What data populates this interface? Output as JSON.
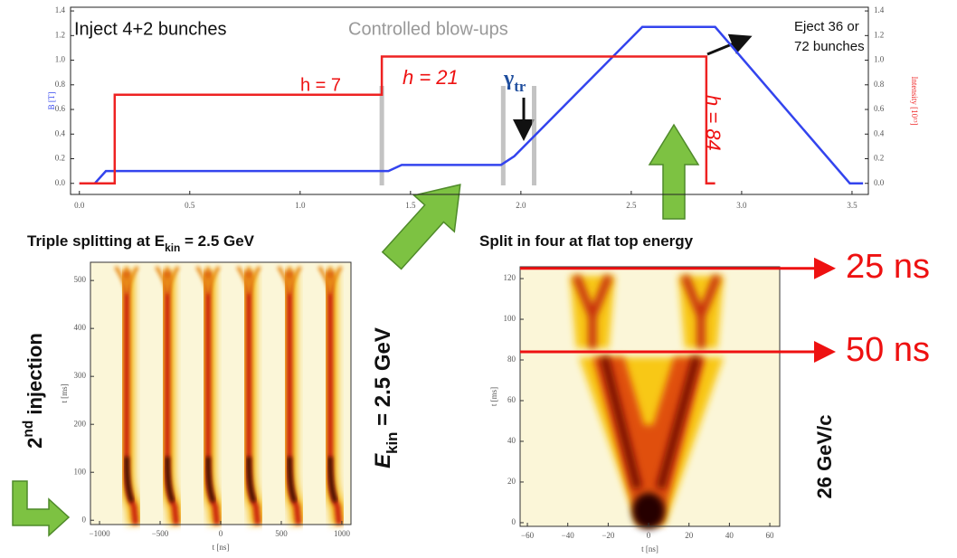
{
  "chart_data": [
    {
      "type": "line",
      "ylabel": "B [T]",
      "y2label": "Intensity [10¹³]",
      "xlim": [
        -0.04,
        3.574
      ],
      "ylim": [
        -0.09,
        1.43
      ],
      "y2lim": [
        -0.09,
        1.43
      ],
      "xticks": [
        {
          "value": 0,
          "label": "0.0"
        },
        0.5,
        {
          "value": 1,
          "label": "1.0"
        },
        1.5,
        {
          "value": 2,
          "label": "2.0"
        },
        2.5,
        {
          "value": 3,
          "label": "3.0"
        },
        3.5
      ],
      "yticks": [
        {
          "value": 0,
          "label": "0.0"
        },
        0.2,
        0.4,
        0.6,
        0.8,
        {
          "value": 1,
          "label": "1.0"
        },
        1.2,
        1.4
      ],
      "y2ticks": [
        {
          "value": 0,
          "label": "0.0"
        },
        0.2,
        0.4,
        0.6,
        0.8,
        {
          "value": 1,
          "label": "1.0"
        },
        1.2,
        1.4
      ],
      "series": [
        {
          "color": "#3344ee",
          "x": [
            0,
            0.07,
            0.12,
            1.4,
            1.46,
            1.91,
            1.97,
            2.55,
            2.88,
            3.49,
            3.55
          ],
          "values": [
            0,
            0,
            0.1,
            0.1,
            0.15,
            0.15,
            0.22,
            1.27,
            1.27,
            0,
            0
          ]
        },
        {
          "color": "#ee2222",
          "axis": "y2",
          "x": [
            0,
            0.16,
            0.16,
            1.37,
            1.37,
            2.84,
            2.84,
            2.88
          ],
          "values": [
            0,
            0,
            0.72,
            0.72,
            1.03,
            1.03,
            0,
            0
          ]
        }
      ],
      "vlines": [
        1.37,
        1.92,
        2.06
      ],
      "annotations": [
        "Inject 4+2 bunches",
        "Controlled blow-ups",
        "h = 7",
        "h = 21",
        "h = 84",
        "Eject 36 or",
        "72 bunches"
      ],
      "gamma": {
        "text": "γ",
        "sub": "tr"
      }
    },
    {
      "type": "heatmap",
      "title": {
        "text": "Triple splitting at E",
        "sub": "kin",
        "after": " = 2.5 GeV"
      },
      "xlabel": "t [ns]",
      "ylabel": "t [ms]",
      "xlim": [
        -1075,
        1075
      ],
      "ylim": [
        -9,
        538
      ],
      "xticks": [
        {
          "value": -1000,
          "label": "−1000"
        },
        {
          "value": -500,
          "label": "−500"
        },
        0,
        500,
        1000
      ],
      "yticks": [
        0,
        100,
        200,
        300,
        400,
        500
      ],
      "side_label": {
        "text": "E",
        "sub": "kin",
        "after": " = 2.5 GeV"
      },
      "left_label": {
        "text": "2",
        "sup": "nd",
        "after": " injection"
      }
    },
    {
      "type": "heatmap",
      "title": {
        "text": "Split in four at flat top energy"
      },
      "xlabel": "t [ns]",
      "ylabel": "t [ms]",
      "xlim": [
        -63.6,
        64.9
      ],
      "ylim": [
        -1.8,
        125.8
      ],
      "xticks": [
        {
          "value": -60,
          "label": "−60"
        },
        {
          "value": -40,
          "label": "−40"
        },
        {
          "value": -20,
          "label": "−20"
        },
        0,
        20,
        40,
        60
      ],
      "yticks": [
        0,
        20,
        40,
        60,
        80,
        100,
        120
      ],
      "hlines": [
        {
          "y": 125,
          "label": "25 ns"
        },
        {
          "y": 84,
          "label": "50 ns"
        }
      ],
      "side_label": {
        "text": "26 GeV/c"
      }
    }
  ]
}
